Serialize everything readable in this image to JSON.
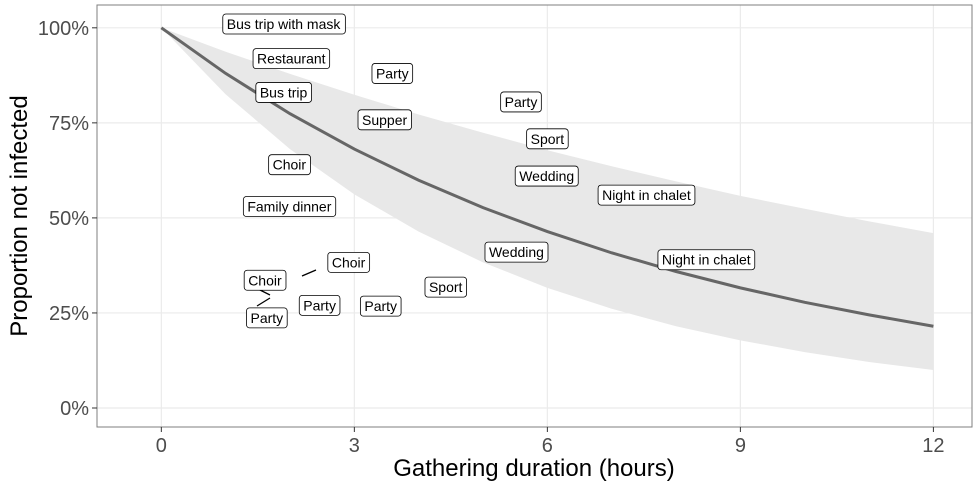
{
  "chart_data": {
    "type": "line",
    "title": "",
    "xlabel": "Gathering duration (hours)",
    "ylabel": "Proportion not infected",
    "xlim": [
      -1,
      12.6
    ],
    "ylim": [
      -5,
      106
    ],
    "x_ticks": [
      0,
      3,
      6,
      9,
      12
    ],
    "x_tick_labels": [
      "0",
      "3",
      "6",
      "9",
      "12"
    ],
    "y_ticks": [
      0,
      25,
      50,
      75,
      100
    ],
    "y_tick_labels": [
      "0%",
      "25%",
      "50%",
      "75%",
      "100%"
    ],
    "grid": true,
    "legend": "none",
    "colors": {
      "line": "#666666",
      "band": "#e8e8e8",
      "grid": "#ebebeb",
      "border": "#7f7f7f"
    },
    "x": [
      0,
      1,
      2,
      3,
      4,
      5,
      6,
      7,
      8,
      9,
      10,
      11,
      12
    ],
    "series": [
      {
        "role": "fit",
        "values": [
          100,
          88.0,
          77.4,
          68.1,
          59.9,
          52.7,
          46.4,
          40.8,
          35.9,
          31.6,
          27.8,
          24.5,
          21.5
        ]
      },
      {
        "role": "upper-band",
        "values": [
          100,
          93.7,
          87.9,
          82.4,
          77.2,
          72.4,
          67.8,
          63.6,
          59.6,
          55.8,
          52.4,
          49.1,
          46.0
        ]
      },
      {
        "role": "lower-band",
        "values": [
          100,
          82.5,
          68.1,
          56.2,
          46.4,
          38.3,
          31.6,
          26.1,
          21.5,
          17.8,
          14.7,
          12.1,
          10.0
        ]
      }
    ],
    "labels": [
      {
        "text": "Bus trip with mask",
        "x": 1.9,
        "y": 101
      },
      {
        "text": "Restaurant",
        "x": 2.02,
        "y": 91.9
      },
      {
        "text": "Party",
        "x": 3.59,
        "y": 88
      },
      {
        "text": "Bus trip",
        "x": 1.9,
        "y": 83
      },
      {
        "text": "Party",
        "x": 5.59,
        "y": 80.5
      },
      {
        "text": "Supper",
        "x": 3.47,
        "y": 75.8
      },
      {
        "text": "Sport",
        "x": 6.0,
        "y": 70.8
      },
      {
        "text": "Choir",
        "x": 1.99,
        "y": 64
      },
      {
        "text": "Wedding",
        "x": 5.99,
        "y": 61
      },
      {
        "text": "Night in chalet",
        "x": 7.54,
        "y": 56
      },
      {
        "text": "Family dinner",
        "x": 1.99,
        "y": 53
      },
      {
        "text": "Wedding",
        "x": 5.52,
        "y": 41
      },
      {
        "text": "Night in chalet",
        "x": 8.47,
        "y": 39
      },
      {
        "text": "Choir",
        "x": 2.91,
        "y": 38.3
      },
      {
        "text": "Choir",
        "x": 1.61,
        "y": 33.6
      },
      {
        "text": "Sport",
        "x": 4.42,
        "y": 31.8
      },
      {
        "text": "Party",
        "x": 2.46,
        "y": 27
      },
      {
        "text": "Party",
        "x": 3.41,
        "y": 26.8
      },
      {
        "text": "Party",
        "x": 1.64,
        "y": 23.7
      }
    ]
  }
}
